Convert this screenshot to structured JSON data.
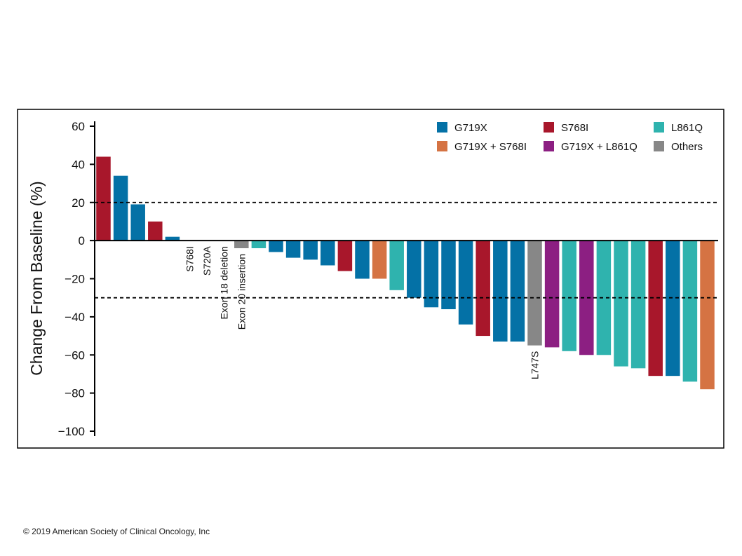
{
  "copyright": "© 2019 American Society of Clinical Oncology, Inc",
  "chart_data": {
    "type": "bar",
    "title": "",
    "xlabel": "",
    "ylabel": "Change From Baseline (%)",
    "ylim": [
      -100,
      60
    ],
    "yticks": [
      60,
      40,
      20,
      0,
      -20,
      -40,
      -60,
      -80,
      -100
    ],
    "ytick_labels": [
      "60",
      "40",
      "20",
      "0",
      "−20",
      "−40",
      "−60",
      "−80",
      "−100"
    ],
    "reference_lines": [
      20,
      -30
    ],
    "colors": {
      "G719X": "#0471a6",
      "S768I": "#a8172b",
      "L861Q": "#2fb3ae",
      "G719X + S768I": "#d57343",
      "G719X + L861Q": "#8c1f82",
      "Others": "#878787"
    },
    "legend": [
      {
        "label": "G719X",
        "key": "G719X"
      },
      {
        "label": "S768I",
        "key": "S768I"
      },
      {
        "label": "L861Q",
        "key": "L861Q"
      },
      {
        "label": "G719X + S768I",
        "key": "G719X + S768I"
      },
      {
        "label": "G719X + L861Q",
        "key": "G719X + L861Q"
      },
      {
        "label": "Others",
        "key": "Others"
      }
    ],
    "bars": [
      {
        "value": 44,
        "group": "S768I"
      },
      {
        "value": 34,
        "group": "G719X"
      },
      {
        "value": 19,
        "group": "G719X"
      },
      {
        "value": 10,
        "group": "S768I"
      },
      {
        "value": 2,
        "group": "G719X"
      },
      {
        "value": 0,
        "group": "S768I",
        "label": "S768I"
      },
      {
        "value": 0,
        "group": "Others",
        "label": "S720A"
      },
      {
        "value": 0,
        "group": "Others",
        "label": "Exon 18 deletion"
      },
      {
        "value": -4,
        "group": "Others",
        "label": "Exon 20 insertion"
      },
      {
        "value": -4,
        "group": "L861Q"
      },
      {
        "value": -6,
        "group": "G719X"
      },
      {
        "value": -9,
        "group": "G719X"
      },
      {
        "value": -10,
        "group": "G719X"
      },
      {
        "value": -13,
        "group": "G719X"
      },
      {
        "value": -16,
        "group": "S768I"
      },
      {
        "value": -20,
        "group": "G719X"
      },
      {
        "value": -20,
        "group": "G719X + S768I"
      },
      {
        "value": -26,
        "group": "L861Q"
      },
      {
        "value": -30,
        "group": "G719X"
      },
      {
        "value": -35,
        "group": "G719X"
      },
      {
        "value": -36,
        "group": "G719X"
      },
      {
        "value": -44,
        "group": "G719X"
      },
      {
        "value": -50,
        "group": "S768I"
      },
      {
        "value": -53,
        "group": "G719X"
      },
      {
        "value": -53,
        "group": "G719X"
      },
      {
        "value": -55,
        "group": "Others",
        "label": "L747S"
      },
      {
        "value": -56,
        "group": "G719X + L861Q"
      },
      {
        "value": -58,
        "group": "L861Q"
      },
      {
        "value": -60,
        "group": "G719X + L861Q"
      },
      {
        "value": -60,
        "group": "L861Q"
      },
      {
        "value": -66,
        "group": "L861Q"
      },
      {
        "value": -67,
        "group": "L861Q"
      },
      {
        "value": -71,
        "group": "S768I"
      },
      {
        "value": -71,
        "group": "G719X"
      },
      {
        "value": -74,
        "group": "L861Q"
      },
      {
        "value": -78,
        "group": "G719X + S768I"
      }
    ]
  }
}
